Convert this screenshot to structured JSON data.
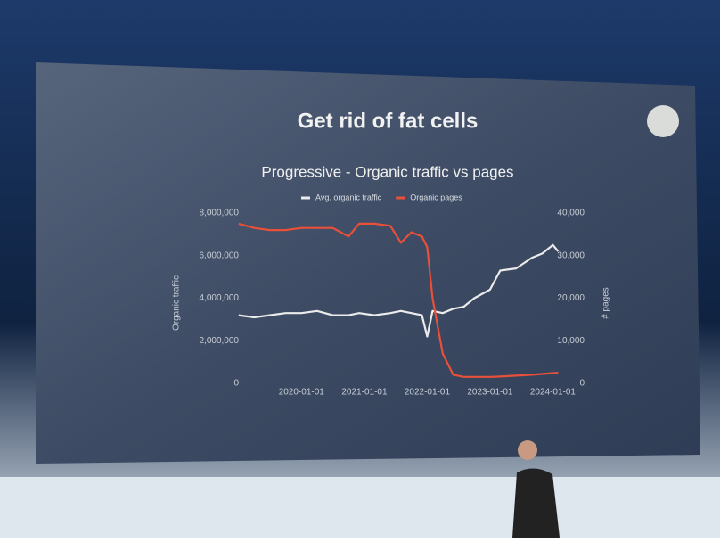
{
  "slide": {
    "title": "Get rid of fat cells"
  },
  "chart_data": {
    "type": "line",
    "title": "Progressive - Organic traffic vs pages",
    "x": [
      "2019-01-01",
      "2019-04-01",
      "2019-07-01",
      "2019-10-01",
      "2020-01-01",
      "2020-04-01",
      "2020-07-01",
      "2020-10-01",
      "2020-12-01",
      "2021-03-01",
      "2021-06-01",
      "2021-08-01",
      "2021-10-01",
      "2021-12-01",
      "2022-01-01",
      "2022-02-01",
      "2022-04-01",
      "2022-06-01",
      "2022-08-01",
      "2022-10-01",
      "2023-01-01",
      "2023-03-01",
      "2023-06-01",
      "2023-09-01",
      "2023-11-01",
      "2024-01-01",
      "2024-02-01"
    ],
    "series": [
      {
        "name": "Avg. organic traffic",
        "color": "#ebebeb",
        "values": [
          3200000,
          3100000,
          3200000,
          3300000,
          3300000,
          3400000,
          3200000,
          3200000,
          3300000,
          3200000,
          3300000,
          3400000,
          3300000,
          3200000,
          2200000,
          3400000,
          3300000,
          3500000,
          3600000,
          4000000,
          4400000,
          5300000,
          5400000,
          5900000,
          6100000,
          6500000,
          6200000
        ]
      },
      {
        "name": "Organic pages",
        "color": "#e8503a",
        "axis": "y2",
        "values": [
          37500,
          36500,
          36000,
          36000,
          36500,
          36500,
          36500,
          34500,
          37500,
          37500,
          37000,
          33000,
          35500,
          34500,
          32000,
          20000,
          7000,
          2000,
          1500,
          1500,
          1500,
          1600,
          1800,
          2000,
          2200,
          2400,
          2500
        ]
      }
    ],
    "xlim": [
      "2018-11-01",
      "2024-04-01"
    ],
    "xticks": [
      "2020-01-01",
      "2021-01-01",
      "2022-01-01",
      "2023-01-01",
      "2024-01-01"
    ],
    "ylim": [
      0,
      8000000
    ],
    "yticks": [
      0,
      {
        "value": 2000000,
        "label": "2,000,000"
      },
      {
        "value": 4000000,
        "label": "4,000,000"
      },
      {
        "value": 6000000,
        "label": "6,000,000"
      },
      {
        "value": 8000000,
        "label": "8,000,000"
      }
    ],
    "y2lim": [
      0,
      40000
    ],
    "y2ticks": [
      0,
      {
        "value": 10000,
        "label": "10,000"
      },
      {
        "value": 20000,
        "label": "20,000"
      },
      {
        "value": 30000,
        "label": "30,000"
      },
      {
        "value": 40000,
        "label": "40,000"
      }
    ],
    "ylabel": "Organic traffic",
    "y2label": "# pages"
  }
}
